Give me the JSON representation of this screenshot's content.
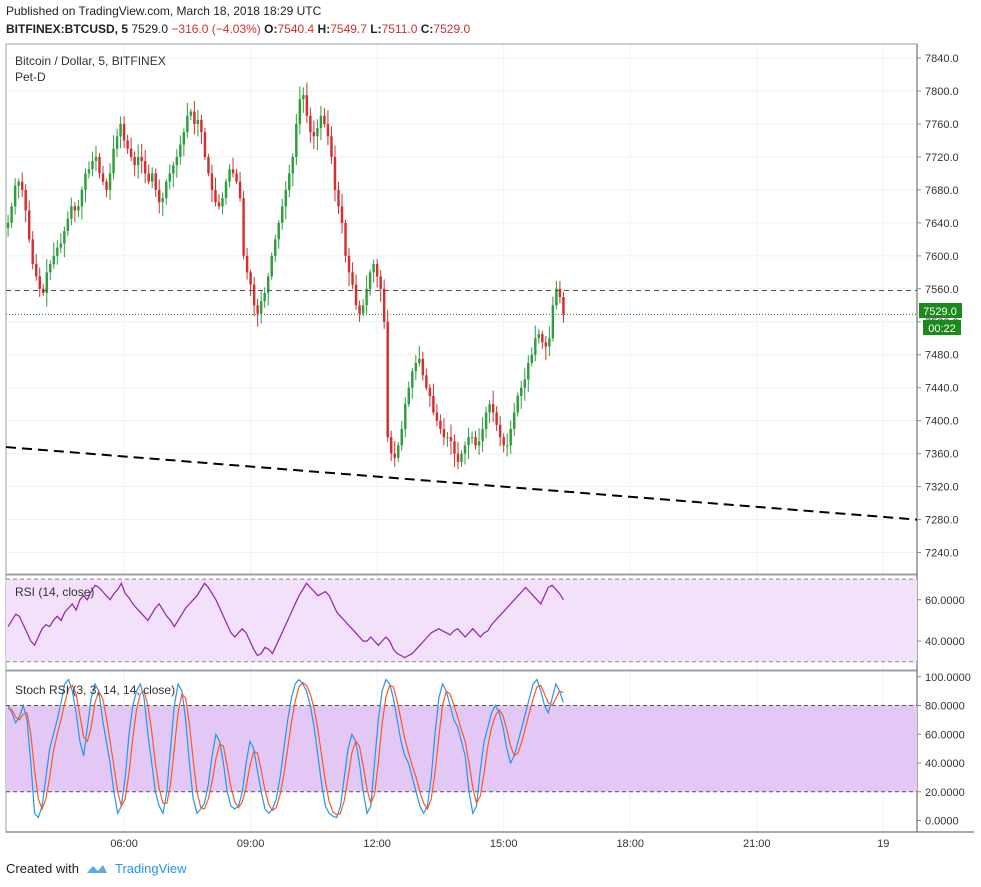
{
  "header": {
    "published": "Published on TradingView.com, March 18, 2018 18:29 UTC",
    "symbol": "BITFINEX:BTCUSD, 5",
    "last": "7529.0",
    "change": "−316.0 (−4.03%)",
    "o_label": "O:",
    "o_value": "7540.4",
    "h_label": "H:",
    "h_value": "7549.7",
    "l_label": "L:",
    "l_value": "7511.0",
    "c_label": "C:",
    "c_value": "7529.0"
  },
  "pane_labels": {
    "title": "Bitcoin / Dollar, 5, BITFINEX",
    "author": "Pet-D",
    "rsi": "RSI (14, close)",
    "stoch": "Stoch RSI (3, 3, 14, 14, close)"
  },
  "price_tag": {
    "price": "7529.0",
    "countdown": "00:22"
  },
  "footer": {
    "created_with": "Created with",
    "brand": "TradingView"
  },
  "colors": {
    "up": "#26a69a",
    "down": "#ef5350",
    "candle_up": "#2e9e3f",
    "candle_down": "#d32f2f",
    "rsi": "#8e24aa",
    "rsi_band": "#f3e0fb",
    "stoch_band": "#e3c8f5",
    "stoch_k": "#2196f3",
    "stoch_d": "#ff5722",
    "tag": "#1b8a1b"
  },
  "chart_data": [
    {
      "type": "candlestick",
      "title": "Bitcoin / Dollar, 5, BITFINEX",
      "x_ticks": [
        "06:00",
        "09:00",
        "12:00",
        "15:00",
        "18:00",
        "21:00",
        "19"
      ],
      "y_ticks": [
        "7840.0",
        "7800.0",
        "7760.0",
        "7720.0",
        "7680.0",
        "7640.0",
        "7600.0",
        "7560.0",
        "7520.0",
        "7480.0",
        "7440.0",
        "7400.0",
        "7360.0",
        "7320.0",
        "7280.0",
        "7240.0"
      ],
      "ylim": [
        7214,
        7857
      ],
      "xlim_hours": [
        3.2,
        24.8
      ],
      "horizontal_line": 7558,
      "last_price_line": 7529.0,
      "trendline": {
        "x_hours": [
          3.2,
          24.8
        ],
        "y": [
          7368,
          7280
        ]
      },
      "closes": [
        7640,
        7660,
        7685,
        7690,
        7680,
        7655,
        7620,
        7590,
        7575,
        7560,
        7555,
        7580,
        7590,
        7600,
        7610,
        7615,
        7630,
        7645,
        7660,
        7655,
        7660,
        7680,
        7700,
        7705,
        7715,
        7720,
        7700,
        7690,
        7680,
        7700,
        7730,
        7745,
        7760,
        7740,
        7730,
        7720,
        7710,
        7720,
        7715,
        7700,
        7690,
        7700,
        7680,
        7665,
        7670,
        7690,
        7700,
        7710,
        7720,
        7735,
        7750,
        7770,
        7775,
        7760,
        7765,
        7750,
        7720,
        7700,
        7680,
        7665,
        7660,
        7670,
        7690,
        7705,
        7700,
        7690,
        7670,
        7600,
        7580,
        7565,
        7540,
        7530,
        7545,
        7555,
        7575,
        7600,
        7620,
        7640,
        7660,
        7680,
        7700,
        7720,
        7760,
        7790,
        7795,
        7770,
        7750,
        7745,
        7755,
        7770,
        7760,
        7745,
        7720,
        7680,
        7660,
        7640,
        7600,
        7580,
        7565,
        7540,
        7530,
        7540,
        7560,
        7580,
        7590,
        7575,
        7560,
        7520,
        7380,
        7360,
        7355,
        7370,
        7390,
        7420,
        7440,
        7460,
        7470,
        7475,
        7455,
        7440,
        7430,
        7410,
        7400,
        7390,
        7380,
        7380,
        7375,
        7360,
        7350,
        7360,
        7370,
        7380,
        7380,
        7370,
        7375,
        7390,
        7410,
        7420,
        7410,
        7395,
        7380,
        7370,
        7370,
        7390,
        7410,
        7430,
        7440,
        7450,
        7470,
        7480,
        7500,
        7505,
        7495,
        7490,
        7500,
        7540,
        7560,
        7550,
        7529
      ],
      "rsi": {
        "ylim": [
          26,
          72
        ],
        "bands": [
          70,
          30
        ],
        "ticks": [
          "60.0000",
          "40.0000"
        ],
        "values": [
          47,
          50,
          53,
          52,
          48,
          44,
          40,
          38,
          42,
          46,
          48,
          47,
          50,
          52,
          50,
          54,
          56,
          58,
          55,
          60,
          62,
          60,
          64,
          67,
          66,
          64,
          62,
          60,
          63,
          65,
          68,
          63,
          61,
          58,
          56,
          54,
          52,
          50,
          53,
          56,
          58,
          55,
          52,
          50,
          47,
          50,
          53,
          56,
          58,
          60,
          62,
          65,
          68,
          66,
          63,
          60,
          56,
          52,
          48,
          44,
          42,
          44,
          46,
          44,
          40,
          36,
          33,
          34,
          37,
          36,
          34,
          38,
          42,
          46,
          50,
          54,
          58,
          62,
          65,
          68,
          66,
          64,
          62,
          63,
          64,
          62,
          58,
          54,
          52,
          50,
          48,
          46,
          44,
          42,
          40,
          40,
          42,
          40,
          38,
          40,
          42,
          40,
          36,
          34,
          33,
          32,
          33,
          34,
          36,
          38,
          40,
          42,
          44,
          45,
          46,
          45,
          44,
          43,
          45,
          46,
          44,
          42,
          44,
          46,
          44,
          42,
          44,
          45,
          48,
          50,
          52,
          54,
          56,
          58,
          60,
          62,
          64,
          66,
          64,
          62,
          60,
          58,
          62,
          66,
          67,
          65,
          63,
          60
        ]
      },
      "stoch_rsi": {
        "ylim": [
          -8,
          104
        ],
        "bands": [
          80,
          20
        ],
        "ticks": [
          "100.0000",
          "80.0000",
          "60.0000",
          "40.0000",
          "20.0000",
          "0.0000"
        ],
        "k": [
          80,
          75,
          68,
          72,
          80,
          70,
          40,
          5,
          2,
          10,
          30,
          50,
          60,
          70,
          82,
          95,
          98,
          90,
          75,
          55,
          45,
          65,
          85,
          95,
          90,
          70,
          55,
          40,
          20,
          5,
          10,
          30,
          60,
          80,
          90,
          95,
          85,
          60,
          40,
          20,
          10,
          5,
          20,
          50,
          80,
          95,
          90,
          70,
          40,
          15,
          5,
          8,
          12,
          25,
          45,
          60,
          55,
          40,
          20,
          10,
          8,
          10,
          20,
          40,
          55,
          50,
          35,
          20,
          8,
          5,
          8,
          15,
          30,
          50,
          70,
          85,
          95,
          98,
          95,
          90,
          80,
          65,
          45,
          25,
          10,
          5,
          3,
          2,
          10,
          30,
          50,
          60,
          55,
          40,
          20,
          5,
          10,
          40,
          70,
          90,
          98,
          95,
          85,
          70,
          55,
          45,
          40,
          30,
          20,
          10,
          5,
          10,
          30,
          60,
          85,
          95,
          90,
          80,
          70,
          65,
          55,
          45,
          20,
          5,
          10,
          35,
          55,
          65,
          75,
          80,
          75,
          65,
          50,
          40,
          45,
          55,
          65,
          75,
          85,
          95,
          98,
          90,
          80,
          75,
          85,
          95,
          90,
          82
        ],
        "d": [
          78,
          77,
          72,
          70,
          74,
          75,
          60,
          35,
          15,
          8,
          15,
          30,
          48,
          60,
          70,
          82,
          92,
          94,
          88,
          73,
          58,
          55,
          65,
          82,
          90,
          85,
          72,
          55,
          38,
          20,
          10,
          15,
          33,
          57,
          77,
          88,
          90,
          80,
          62,
          40,
          22,
          12,
          12,
          25,
          50,
          75,
          88,
          85,
          67,
          42,
          20,
          9,
          8,
          15,
          27,
          43,
          53,
          52,
          38,
          23,
          13,
          9,
          13,
          23,
          38,
          48,
          47,
          35,
          21,
          11,
          7,
          9,
          18,
          32,
          50,
          68,
          83,
          93,
          96,
          94,
          88,
          78,
          63,
          45,
          27,
          13,
          6,
          4,
          5,
          14,
          30,
          47,
          55,
          52,
          38,
          22,
          12,
          18,
          40,
          67,
          86,
          94,
          93,
          83,
          70,
          57,
          47,
          38,
          30,
          20,
          12,
          8,
          15,
          33,
          58,
          80,
          90,
          88,
          80,
          72,
          63,
          55,
          40,
          23,
          12,
          17,
          33,
          52,
          65,
          73,
          77,
          73,
          63,
          52,
          45,
          47,
          55,
          65,
          75,
          85,
          93,
          94,
          88,
          82,
          80,
          85,
          90,
          89
        ]
      }
    }
  ]
}
